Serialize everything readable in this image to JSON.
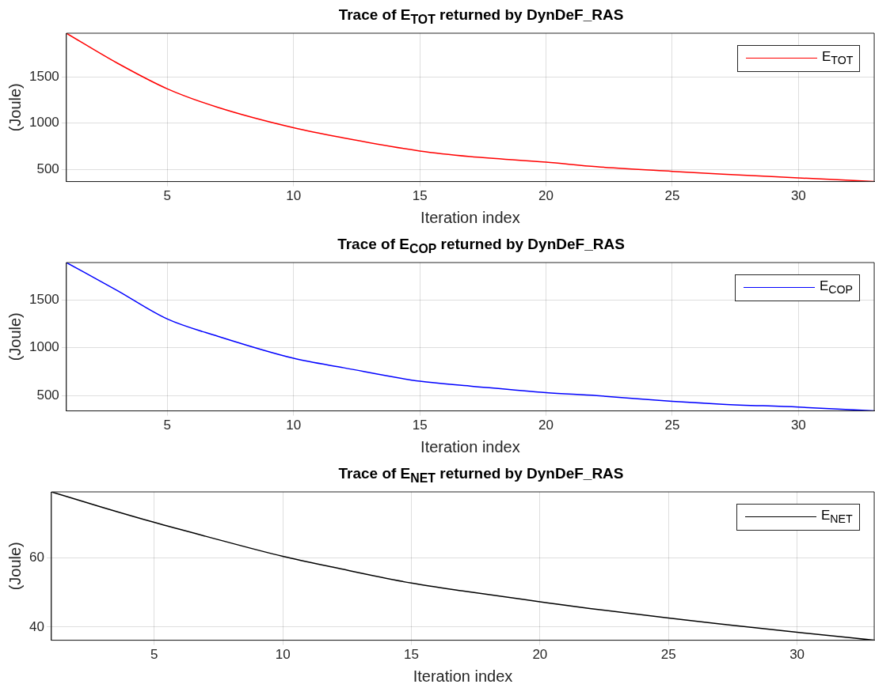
{
  "chart_data": [
    {
      "type": "line",
      "title": "Trace of E$_{TOT}$ returned by DynDeF_RAS",
      "xlabel": "Iteration index",
      "ylabel": "(Joule)",
      "x": [
        1,
        3,
        5,
        7,
        10,
        12,
        15,
        17,
        20,
        22,
        25,
        27,
        30,
        33
      ],
      "series": [
        {
          "name": "E$_{TOT}$",
          "color": "#ff0000",
          "values": [
            1970,
            1650,
            1370,
            1170,
            950,
            840,
            700,
            640,
            580,
            530,
            480,
            450,
            410,
            370
          ]
        }
      ],
      "xlim": [
        1,
        33
      ],
      "xticks": [
        5,
        10,
        15,
        20,
        25,
        30
      ],
      "ylim": [
        370,
        1970
      ],
      "yticks": [
        500,
        1000,
        1500
      ],
      "grid": true,
      "legend": "top right"
    },
    {
      "type": "line",
      "title": "Trace of E$_{COP}$ returned by DynDeF_RAS",
      "xlabel": "Iteration index",
      "ylabel": "(Joule)",
      "x": [
        1,
        3,
        5,
        7,
        10,
        12,
        15,
        17,
        20,
        22,
        25,
        27,
        30,
        33
      ],
      "series": [
        {
          "name": "E$_{COP}$",
          "color": "#0000ff",
          "values": [
            1890,
            1600,
            1300,
            1120,
            890,
            790,
            650,
            600,
            530,
            500,
            440,
            410,
            380,
            340
          ]
        }
      ],
      "xlim": [
        1,
        33
      ],
      "xticks": [
        5,
        10,
        15,
        20,
        25,
        30
      ],
      "ylim": [
        340,
        1890
      ],
      "yticks": [
        500,
        1000,
        1500
      ],
      "grid": true,
      "legend": "top right"
    },
    {
      "type": "line",
      "title": "Trace of E$_{NET}$ returned by DynDeF_RAS",
      "xlabel": "Iteration index",
      "ylabel": "(Joule)",
      "x": [
        1,
        3,
        5,
        7,
        10,
        12,
        15,
        17,
        20,
        22,
        25,
        27,
        30,
        33
      ],
      "series": [
        {
          "name": "E$_{NET}$",
          "color": "#000000",
          "values": [
            79,
            74.5,
            70.2,
            66.2,
            60.4,
            57.2,
            52.7,
            50.4,
            47.3,
            45.3,
            42.6,
            40.9,
            38.5,
            36.2
          ]
        }
      ],
      "xlim": [
        1,
        33
      ],
      "xticks": [
        5,
        10,
        15,
        20,
        25,
        30
      ],
      "ylim": [
        36.2,
        79
      ],
      "yticks": [
        40,
        60
      ],
      "grid": true,
      "legend": "top right"
    }
  ]
}
